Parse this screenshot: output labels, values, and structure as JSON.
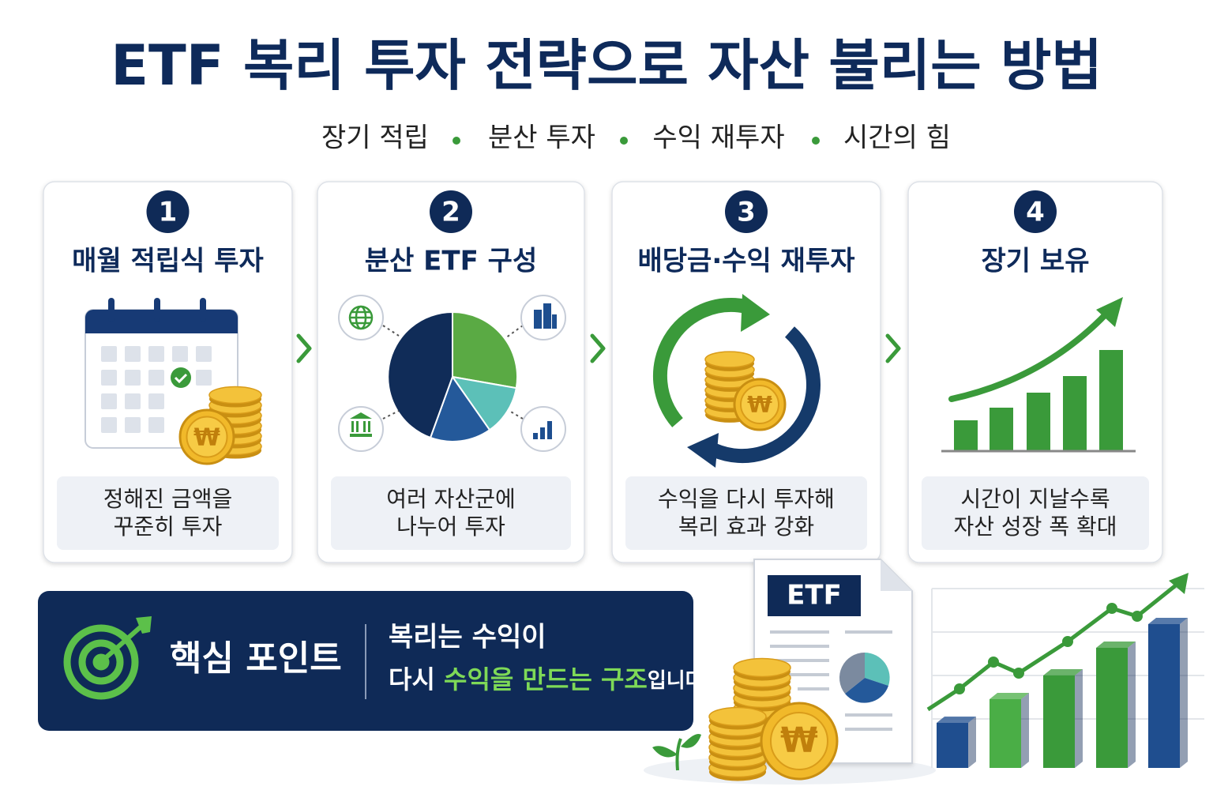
{
  "header": {
    "title": "ETF 복리 투자 전략으로 자산 불리는 방법",
    "keywords": [
      "장기 적립",
      "분산 투자",
      "수익 재투자",
      "시간의 힘"
    ]
  },
  "steps": [
    {
      "number": "1",
      "title": "매월 적립식 투자",
      "description": [
        "정해진 금액을",
        "꾸준히 투자"
      ]
    },
    {
      "number": "2",
      "title": "분산 ETF 구성",
      "description": [
        "여러 자산군에",
        "나누어 투자"
      ]
    },
    {
      "number": "3",
      "title": "배당금·수익 재투자",
      "description": [
        "수익을 다시 투자해",
        "복리 효과 강화"
      ]
    },
    {
      "number": "4",
      "title": "장기 보유",
      "description": [
        "시간이 지날수록",
        "자산 성장 폭 확대"
      ]
    }
  ],
  "key_point": {
    "label": "핵심 포인트",
    "message": {
      "line1": "복리는 수익이",
      "line2": [
        "다시 ",
        "수익을 만드는 구조",
        "입니다."
      ]
    }
  },
  "illustration": {
    "document_label": "ETF",
    "coin_symbol": "₩"
  }
}
